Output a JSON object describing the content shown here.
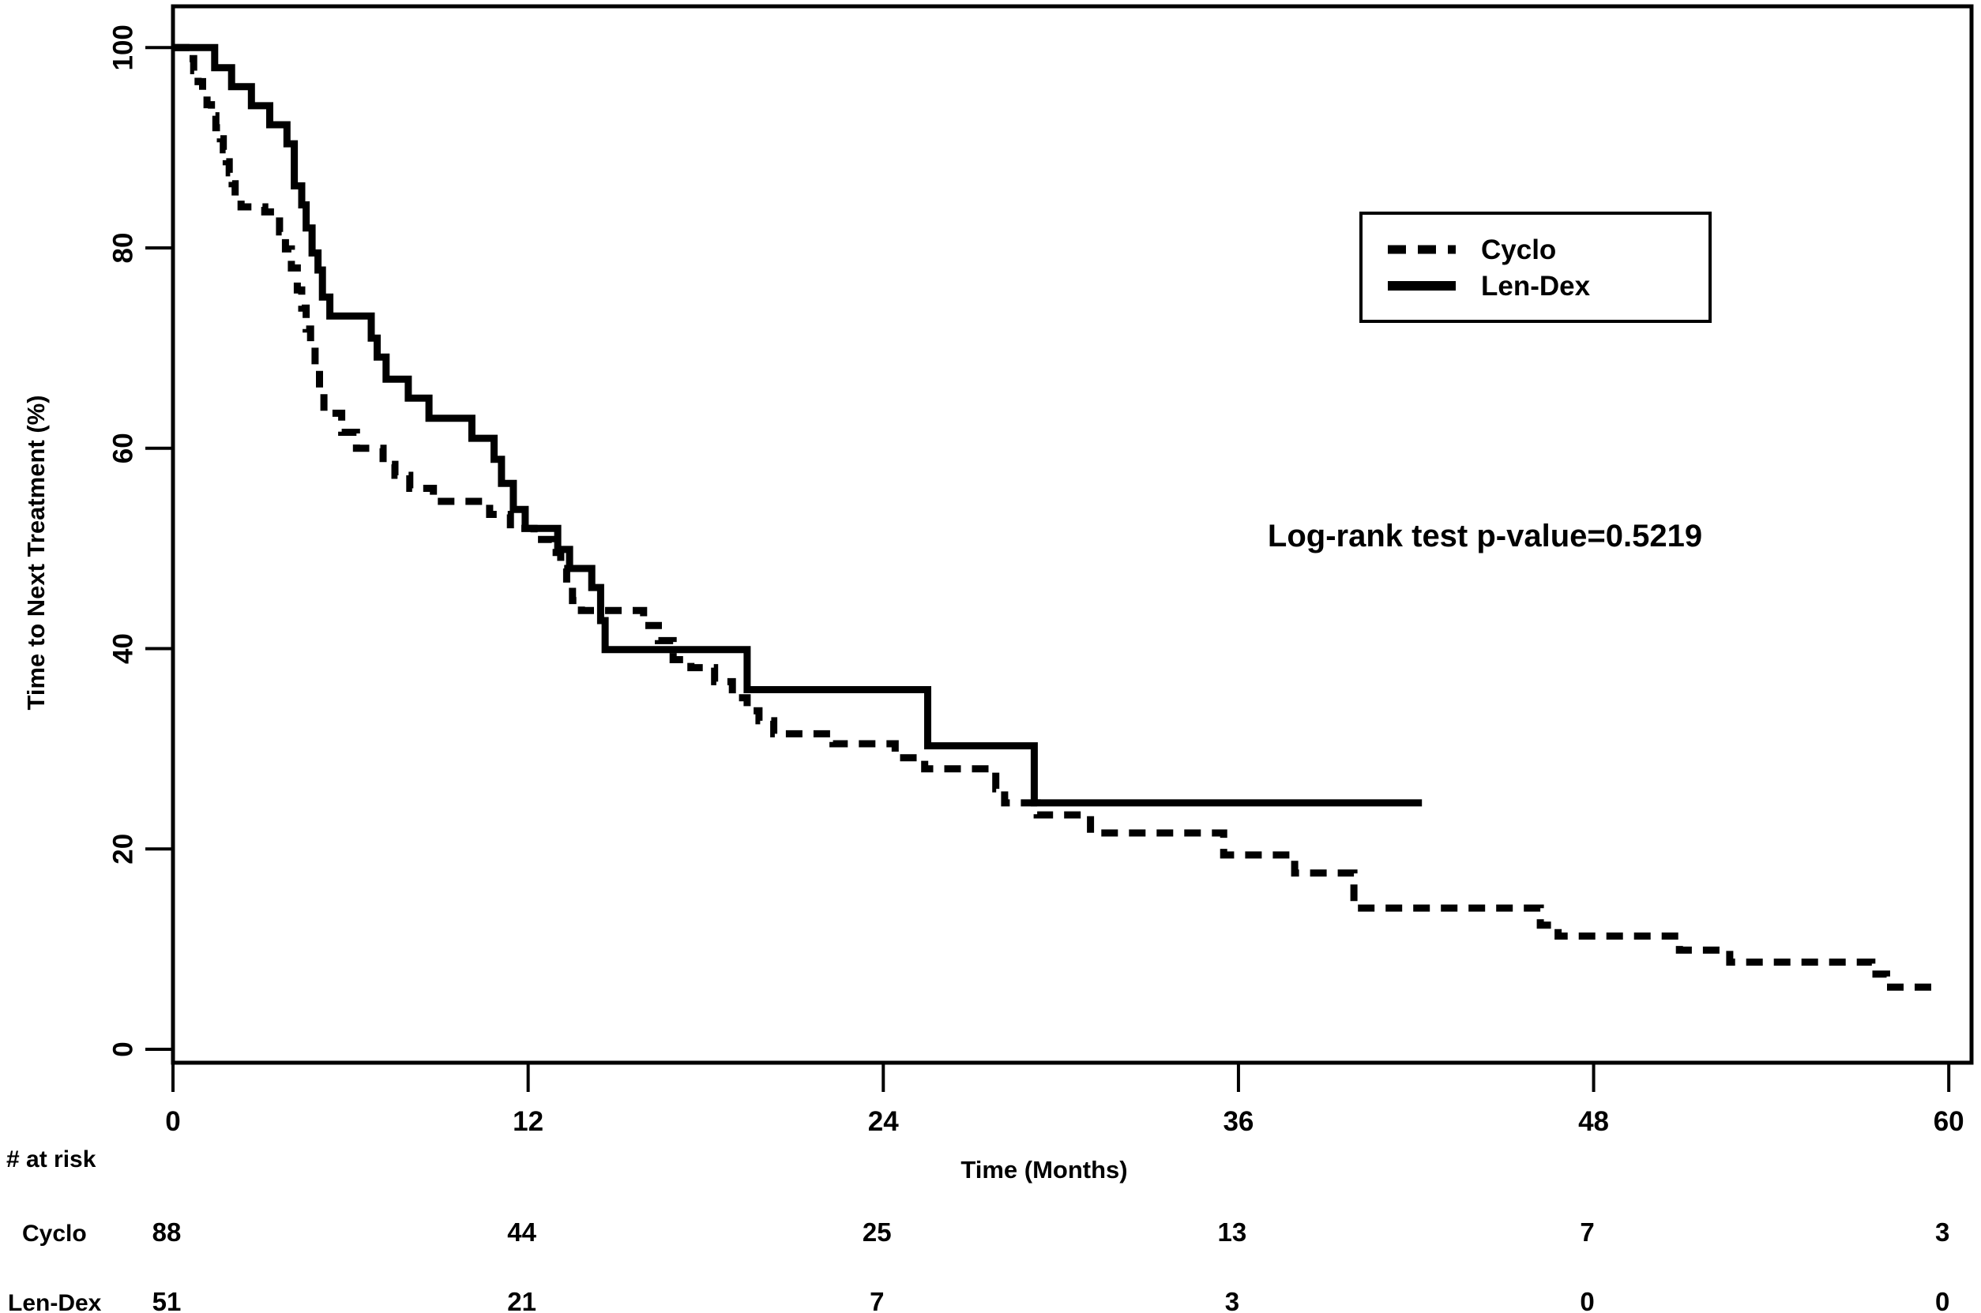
{
  "figure": {
    "background": "#ffffff",
    "ink_color": "#000000"
  },
  "chart_data": {
    "type": "line",
    "subtype": "kaplan-meier-step-curves",
    "title": "",
    "xlabel": "Time (Months)",
    "ylabel": "Time to Next Treatment (%)",
    "xlim": [
      0,
      60.8
    ],
    "ylim": [
      0,
      100
    ],
    "x_ticks": [
      0,
      12,
      24,
      36,
      48,
      60
    ],
    "y_ticks": [
      0,
      20,
      40,
      60,
      80,
      100
    ],
    "grid": false,
    "legend_position": "upper-right",
    "annotation": "Log-rank test p-value=0.5219",
    "series": [
      {
        "name": "Cyclo",
        "style": "dashed",
        "color": "#000000",
        "points": [
          [
            0,
            100
          ],
          [
            0.56,
            98.9
          ],
          [
            0.7,
            97.7
          ],
          [
            0.85,
            96.6
          ],
          [
            1.0,
            95.5
          ],
          [
            1.15,
            94.3
          ],
          [
            1.3,
            93.2
          ],
          [
            1.45,
            92.0
          ],
          [
            1.6,
            90.9
          ],
          [
            1.7,
            89.8
          ],
          [
            1.8,
            88.6
          ],
          [
            1.9,
            87.5
          ],
          [
            2.0,
            86.4
          ],
          [
            2.1,
            85.2
          ],
          [
            2.3,
            84.1
          ],
          [
            3.1,
            83.6
          ],
          [
            3.6,
            81.6
          ],
          [
            3.8,
            79.9
          ],
          [
            4.0,
            78.0
          ],
          [
            4.2,
            75.8
          ],
          [
            4.35,
            74.0
          ],
          [
            4.5,
            71.9
          ],
          [
            4.65,
            70.1
          ],
          [
            4.8,
            68.0
          ],
          [
            4.95,
            65.9
          ],
          [
            5.1,
            63.5
          ],
          [
            5.7,
            61.6
          ],
          [
            6.2,
            60.0
          ],
          [
            7.1,
            58.4
          ],
          [
            7.5,
            57.3
          ],
          [
            8.0,
            56.0
          ],
          [
            8.8,
            54.7
          ],
          [
            10.7,
            53.4
          ],
          [
            11.4,
            52.0
          ],
          [
            12.2,
            50.9
          ],
          [
            12.8,
            49.6
          ],
          [
            13.1,
            48.0
          ],
          [
            13.3,
            46.1
          ],
          [
            13.5,
            44.8
          ],
          [
            13.8,
            43.8
          ],
          [
            15.9,
            42.3
          ],
          [
            16.4,
            40.8
          ],
          [
            16.9,
            38.9
          ],
          [
            17.5,
            38.1
          ],
          [
            18.3,
            36.7
          ],
          [
            18.9,
            35.1
          ],
          [
            19.4,
            33.8
          ],
          [
            19.8,
            32.8
          ],
          [
            20.3,
            31.5
          ],
          [
            22.3,
            30.5
          ],
          [
            24.4,
            29.1
          ],
          [
            25.4,
            28.0
          ],
          [
            27.8,
            26.0
          ],
          [
            28.1,
            24.6
          ],
          [
            29.2,
            23.4
          ],
          [
            31.0,
            21.6
          ],
          [
            35.5,
            19.4
          ],
          [
            37.9,
            17.6
          ],
          [
            39.9,
            14.1
          ],
          [
            46.2,
            12.4
          ],
          [
            46.8,
            11.3
          ],
          [
            50.9,
            9.9
          ],
          [
            52.6,
            8.7
          ],
          [
            57.4,
            7.5
          ],
          [
            57.9,
            6.2
          ],
          [
            59.7,
            6.2
          ]
        ]
      },
      {
        "name": "Len-Dex",
        "style": "solid",
        "color": "#000000",
        "points": [
          [
            0,
            100
          ],
          [
            1.41,
            98.0
          ],
          [
            1.98,
            96.1
          ],
          [
            2.65,
            94.2
          ],
          [
            3.27,
            92.3
          ],
          [
            3.85,
            90.4
          ],
          [
            4.1,
            86.2
          ],
          [
            4.35,
            84.3
          ],
          [
            4.5,
            82.0
          ],
          [
            4.7,
            79.5
          ],
          [
            4.9,
            77.8
          ],
          [
            5.05,
            75.1
          ],
          [
            5.3,
            73.2
          ],
          [
            6.7,
            71.0
          ],
          [
            6.9,
            69.1
          ],
          [
            7.2,
            66.9
          ],
          [
            7.95,
            65.0
          ],
          [
            8.65,
            63.0
          ],
          [
            10.1,
            61.0
          ],
          [
            10.85,
            58.9
          ],
          [
            11.1,
            56.5
          ],
          [
            11.5,
            53.9
          ],
          [
            11.9,
            52.0
          ],
          [
            13.0,
            49.9
          ],
          [
            13.4,
            48.0
          ],
          [
            14.15,
            46.1
          ],
          [
            14.45,
            42.8
          ],
          [
            14.6,
            39.9
          ],
          [
            19.4,
            35.9
          ],
          [
            25.5,
            30.3
          ],
          [
            29.1,
            24.6
          ],
          [
            42.2,
            24.6
          ]
        ]
      }
    ],
    "risk_table": {
      "header": "# at risk",
      "time_points": [
        0,
        12,
        24,
        36,
        48,
        60
      ],
      "rows": [
        {
          "label": "Cyclo",
          "values": [
            "88",
            "44",
            "25",
            "13",
            "7",
            "3"
          ]
        },
        {
          "label": "Len-Dex",
          "values": [
            "51",
            "21",
            "7",
            "3",
            "0",
            "0"
          ]
        }
      ]
    }
  }
}
